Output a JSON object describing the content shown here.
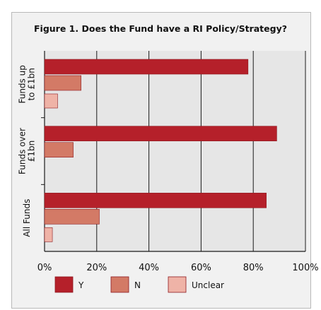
{
  "chart_data": {
    "type": "bar",
    "orientation": "horizontal",
    "title": "Figure 1. Does the Fund have a RI Policy/Strategy?",
    "categories": [
      {
        "lines": [
          "Funds up",
          "to £1bn"
        ]
      },
      {
        "lines": [
          "Funds over",
          "£1bn"
        ]
      },
      {
        "lines": [
          "All Funds"
        ]
      }
    ],
    "series": [
      {
        "name": "Y",
        "color": "#b5202a",
        "values": [
          78,
          89,
          85
        ]
      },
      {
        "name": "N",
        "color": "#d37a66",
        "values": [
          14,
          11,
          21
        ]
      },
      {
        "name": "Unclear",
        "color": "#efb3a7",
        "values": [
          5,
          0,
          3
        ]
      }
    ],
    "xlim": [
      0,
      100
    ],
    "xticks": [
      "0%",
      "20%",
      "40%",
      "60%",
      "80%",
      "100%"
    ],
    "grid": true,
    "legend": "bottom"
  }
}
